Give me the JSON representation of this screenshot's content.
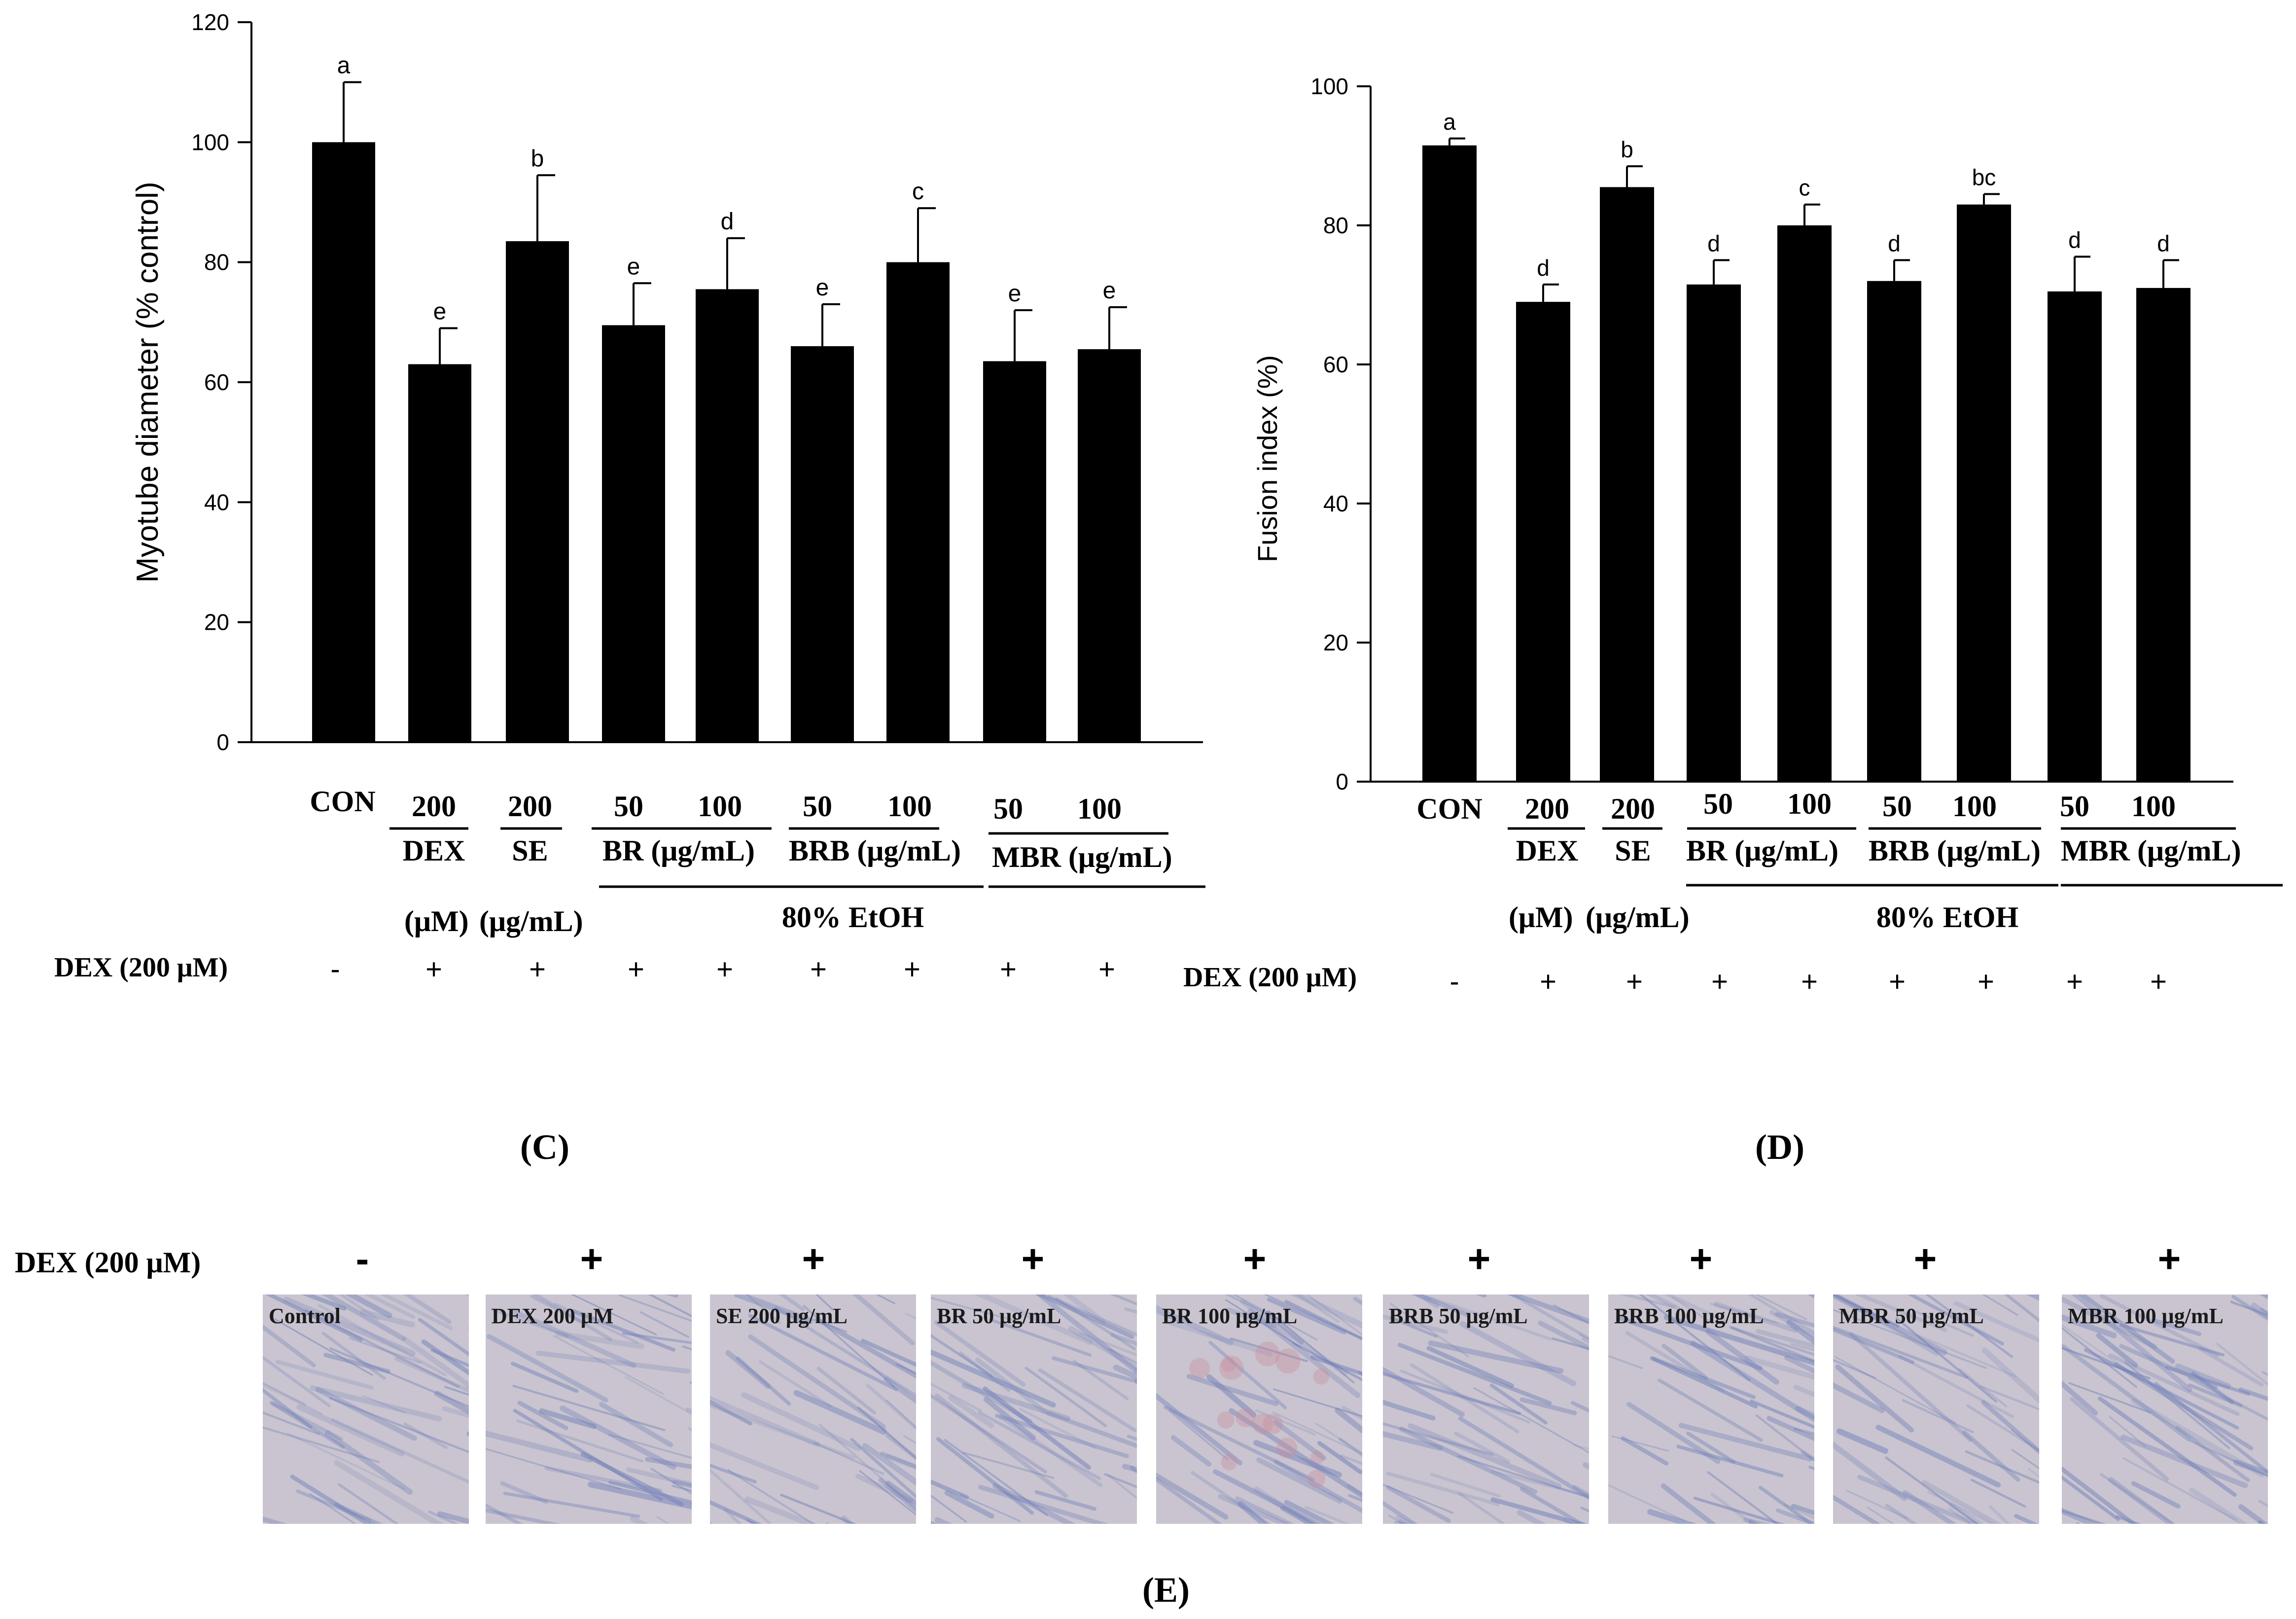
{
  "chart_data": [
    {
      "type": "bar",
      "panel": "C",
      "panel_label": "C",
      "ylabel": "Myotube diameter (% control)",
      "ylim": [
        0,
        120
      ],
      "yticks": [
        0,
        20,
        40,
        60,
        80,
        100,
        120
      ],
      "categories": [
        "CON",
        "DEX 200",
        "SE 200",
        "BR 50",
        "BR 100",
        "BRB 50",
        "BRB 100",
        "MBR 50",
        "MBR 100"
      ],
      "values": [
        100,
        63,
        83.5,
        69.5,
        75.5,
        66,
        80,
        63.5,
        65.5
      ],
      "errors": [
        10,
        6,
        11,
        7,
        8.5,
        7,
        9,
        8.5,
        7
      ],
      "sig_letters": [
        "a",
        "e",
        "b",
        "e",
        "d",
        "e",
        "c",
        "e",
        "e"
      ]
    },
    {
      "type": "bar",
      "panel": "D",
      "panel_label": "D",
      "ylabel": "Fusion index (%)",
      "ylim": [
        0,
        100
      ],
      "yticks": [
        0,
        20,
        40,
        60,
        80,
        100
      ],
      "categories": [
        "CON",
        "DEX 200",
        "SE 200",
        "BR 50",
        "BR 100",
        "BRB 50",
        "BRB 100",
        "MBR 50",
        "MBR 100"
      ],
      "values": [
        91.5,
        69,
        85.5,
        71.5,
        80,
        72,
        83,
        70.5,
        71
      ],
      "errors": [
        1,
        2.5,
        3,
        3.5,
        3,
        3,
        1.5,
        5,
        4
      ],
      "sig_letters": [
        "a",
        "d",
        "b",
        "d",
        "c",
        "d",
        "bc",
        "d",
        "d"
      ]
    }
  ],
  "treatments": {
    "con_label": "CON",
    "doses": [
      "200",
      "200",
      "50",
      "100",
      "50",
      "100",
      "50",
      "100"
    ],
    "group_labels": [
      "DEX",
      "SE",
      "BR (μg/mL)",
      "BRB (μg/mL)",
      "MBR (μg/mL)"
    ],
    "unit_dex": "(μM)",
    "unit_se": "(μg/mL)",
    "extract_note": "80% EtOH",
    "dex_row_label": "DEX (200 μM)",
    "dex_row_signs": [
      "-",
      "+",
      "+",
      "+",
      "+",
      "+",
      "+",
      "+",
      "+"
    ]
  },
  "panel_e": {
    "panel_label": "E",
    "dex_row_label": "DEX (200 μM)",
    "signs": [
      "-",
      "+",
      "+",
      "+",
      "+",
      "+",
      "+",
      "+",
      "+"
    ],
    "micrographs": [
      {
        "label": "Control"
      },
      {
        "label": "DEX 200  μM"
      },
      {
        "label": "SE 200  μg/mL"
      },
      {
        "label": "BR 50  μg/mL"
      },
      {
        "label": "BR 100  μg/mL"
      },
      {
        "label": "BRB 50  μg/mL"
      },
      {
        "label": "BRB 100  μg/mL"
      },
      {
        "label": "MBR 50  μg/mL"
      },
      {
        "label": "MBR 100  μg/mL"
      }
    ]
  },
  "colors": {
    "bar": "#000000",
    "text": "#000000",
    "micro_bg": "#c9c4cf",
    "micro_fiber": "#6f7fb8",
    "micro_pink": "#c98a98"
  }
}
